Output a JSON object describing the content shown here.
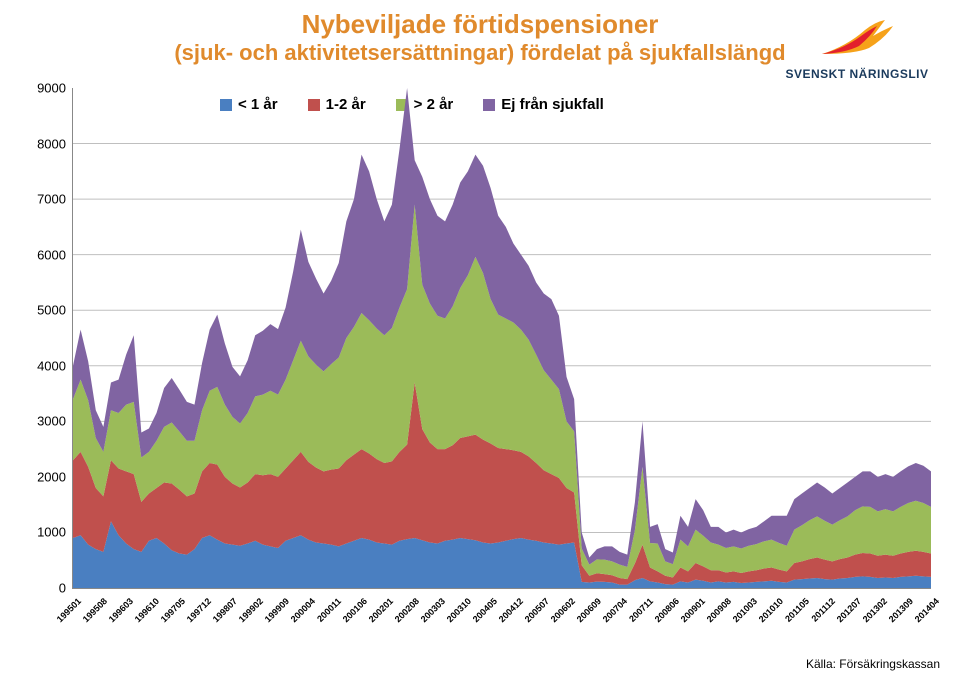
{
  "title_line1": "Nybeviljade förtidspensioner",
  "title_line2": "(sjuk- och aktivitetsersättningar) fördelat på sjukfallslängd",
  "title_color": "#e08a2c",
  "title_fontsize": 26,
  "subtitle_fontsize": 22,
  "logo_text": "SVENSKT NÄRINGSLIV",
  "logo_text_color": "#1a3a5c",
  "logo_text_fontsize": 12,
  "legend": {
    "fontsize": 15,
    "items": [
      {
        "label": "< 1 år",
        "color": "#4a7fc1"
      },
      {
        "label": "1-2 år",
        "color": "#c0504d"
      },
      {
        "label": "> 2 år",
        "color": "#9bbb59"
      },
      {
        "label": "Ej från sjukfall",
        "color": "#8064a2"
      }
    ]
  },
  "chart": {
    "type": "stacked-area",
    "ymin": 0,
    "ymax": 9000,
    "ytick_step": 1000,
    "background": "#ffffff",
    "grid_color": "#bfbfbf",
    "border_color": "#888888",
    "x_labels": [
      "199501",
      "199508",
      "199603",
      "199610",
      "199705",
      "199712",
      "199807",
      "199902",
      "199909",
      "200004",
      "200011",
      "200106",
      "200201",
      "200208",
      "200303",
      "200310",
      "200405",
      "200412",
      "200507",
      "200602",
      "200609",
      "200704",
      "200711",
      "200806",
      "200901",
      "200908",
      "201003",
      "201010",
      "201105",
      "201112",
      "201207",
      "201302",
      "201309",
      "201404"
    ],
    "series": [
      {
        "key": "lt1",
        "color": "#4a7fc1"
      },
      {
        "key": "y12",
        "color": "#c0504d"
      },
      {
        "key": "gt2",
        "color": "#9bbb59"
      },
      {
        "key": "none",
        "color": "#8064a2"
      }
    ],
    "data": {
      "lt1": [
        900,
        950,
        780,
        700,
        650,
        1200,
        950,
        800,
        700,
        650,
        850,
        900,
        800,
        680,
        620,
        600,
        700,
        900,
        950,
        870,
        800,
        780,
        760,
        800,
        850,
        780,
        750,
        720,
        850,
        900,
        950,
        870,
        820,
        800,
        780,
        750,
        800,
        850,
        900,
        870,
        820,
        800,
        780,
        850,
        880,
        900,
        860,
        820,
        800,
        850,
        870,
        900,
        880,
        860,
        820,
        800,
        820,
        850,
        880,
        900,
        870,
        850,
        820,
        800,
        780,
        800,
        820,
        110,
        100,
        115,
        110,
        100,
        60,
        60,
        140,
        180,
        120,
        100,
        70,
        60,
        120,
        100,
        150,
        130,
        100,
        120,
        100,
        110,
        90,
        100,
        110,
        120,
        130,
        110,
        100,
        150,
        160,
        170,
        180,
        160,
        150,
        170,
        180,
        200,
        210,
        200,
        180,
        190,
        180,
        200,
        210,
        220,
        210,
        200
      ],
      "y12": [
        1400,
        1500,
        1400,
        1100,
        1000,
        1100,
        1200,
        1300,
        1350,
        900,
        850,
        900,
        1100,
        1200,
        1150,
        1050,
        1000,
        1200,
        1300,
        1350,
        1200,
        1100,
        1050,
        1100,
        1200,
        1250,
        1300,
        1280,
        1300,
        1400,
        1500,
        1400,
        1350,
        1300,
        1350,
        1400,
        1500,
        1550,
        1600,
        1550,
        1500,
        1450,
        1500,
        1600,
        1700,
        2800,
        2000,
        1800,
        1700,
        1650,
        1700,
        1800,
        1850,
        1900,
        1850,
        1800,
        1700,
        1650,
        1600,
        1550,
        1500,
        1400,
        1300,
        1250,
        1200,
        1000,
        900,
        300,
        120,
        150,
        140,
        130,
        120,
        100,
        300,
        600,
        250,
        200,
        150,
        130,
        250,
        200,
        300,
        260,
        220,
        200,
        180,
        190,
        180,
        200,
        210,
        230,
        240,
        220,
        200,
        300,
        320,
        350,
        370,
        350,
        330,
        350,
        370,
        400,
        420,
        420,
        400,
        410,
        400,
        420,
        440,
        450,
        440,
        420
      ],
      "gt2": [
        1100,
        1300,
        1200,
        900,
        800,
        900,
        1000,
        1200,
        1300,
        800,
        750,
        850,
        1000,
        1100,
        1050,
        1000,
        950,
        1100,
        1300,
        1400,
        1300,
        1200,
        1150,
        1250,
        1400,
        1450,
        1500,
        1480,
        1600,
        1800,
        2000,
        1900,
        1850,
        1800,
        1900,
        2000,
        2200,
        2300,
        2450,
        2400,
        2350,
        2300,
        2400,
        2600,
        2800,
        3200,
        2600,
        2500,
        2400,
        2350,
        2500,
        2700,
        2900,
        3200,
        3000,
        2600,
        2400,
        2350,
        2300,
        2200,
        2100,
        1950,
        1800,
        1700,
        1600,
        1200,
        1100,
        300,
        200,
        250,
        260,
        250,
        240,
        220,
        600,
        1400,
        440,
        500,
        260,
        240,
        500,
        450,
        600,
        550,
        500,
        460,
        440,
        450,
        440,
        460,
        470,
        490,
        500,
        480,
        460,
        600,
        650,
        700,
        740,
        700,
        660,
        700,
        740,
        800,
        840,
        840,
        800,
        820,
        800,
        840,
        880,
        900,
        880,
        840
      ],
      "none": [
        600,
        900,
        700,
        500,
        450,
        500,
        600,
        900,
        1200,
        450,
        420,
        500,
        700,
        800,
        750,
        700,
        650,
        850,
        1100,
        1300,
        1100,
        900,
        850,
        950,
        1100,
        1150,
        1200,
        1180,
        1300,
        1600,
        2000,
        1700,
        1550,
        1400,
        1500,
        1700,
        2100,
        2300,
        2850,
        2680,
        2330,
        2050,
        2220,
        2850,
        3620,
        800,
        1940,
        1880,
        1800,
        1750,
        1830,
        1900,
        1870,
        1840,
        1930,
        2000,
        1780,
        1650,
        1420,
        1350,
        1330,
        1300,
        1380,
        1450,
        1320,
        800,
        580,
        290,
        130,
        185,
        240,
        270,
        230,
        220,
        500,
        820,
        290,
        350,
        220,
        210,
        430,
        350,
        550,
        460,
        280,
        320,
        280,
        300,
        290,
        300,
        310,
        360,
        430,
        490,
        540,
        550,
        570,
        580,
        610,
        600,
        560,
        580,
        610,
        600,
        630,
        640,
        620,
        630,
        620,
        640,
        660,
        680,
        670,
        640
      ]
    }
  },
  "source_label": "Källa: Försäkringskassan",
  "source_fontsize": 12,
  "source_color": "#000000"
}
